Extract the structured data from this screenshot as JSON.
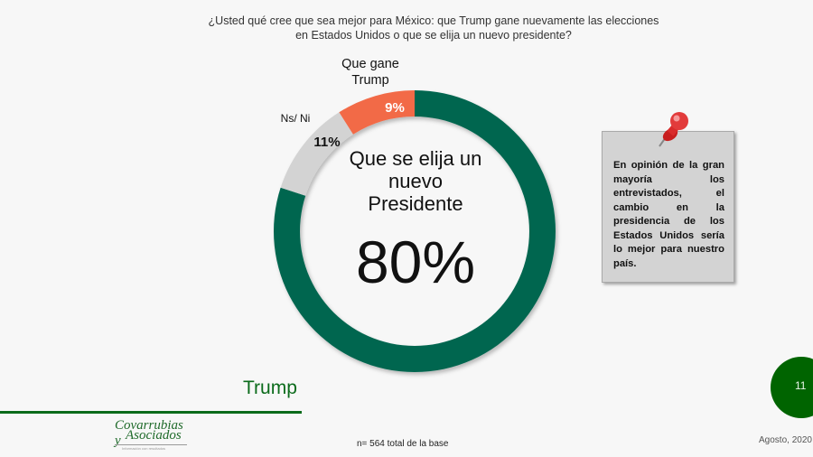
{
  "question": "¿Usted qué cree que sea mejor para México: que Trump gane nuevamente las elecciones en Estados Unidos o que se elija un nuevo presidente?",
  "chart_data": {
    "type": "pie",
    "subtype": "donut",
    "title": "¿Usted qué cree que sea mejor para México: que Trump gane nuevamente las elecciones en Estados Unidos o que se elija un nuevo presidente?",
    "categories": [
      "Que se elija un nuevo Presidente",
      "Ns/ Ni",
      "Que gane Trump"
    ],
    "values": [
      80,
      11,
      9
    ],
    "colors": [
      "#006650",
      "#d3d3d3",
      "#f26a46"
    ],
    "labels": [
      "80%",
      "11%",
      "9%"
    ],
    "start_angle": "top, clockwise",
    "legend": "none (direct labels)"
  },
  "labels": {
    "trump_name": "Que gane Trump",
    "trump_pct": "9%",
    "nsni_name": "Ns/ Ni",
    "nsni_pct": "11%",
    "center_title": "Que se elija un nuevo Presidente",
    "center_value": "80%"
  },
  "note": {
    "text": "En opinión de la gran mayoría los entrevistados, el cambio en la presidencia de los Estados Unidos sería lo mejor para nuestro país.",
    "icon": "pushpin-icon"
  },
  "footer": {
    "section": "Trump",
    "logo_line1": "Covarrubias y",
    "logo_line2": "Asociados",
    "logo_tagline": "Información con resultados",
    "base": "n= 564 total de la base",
    "page": "11",
    "date": "Agosto, 2020"
  },
  "colors": {
    "accent_green": "#0b6b1b",
    "donut_green": "#006650",
    "donut_orange": "#f26a46",
    "donut_gray": "#d3d3d3"
  }
}
